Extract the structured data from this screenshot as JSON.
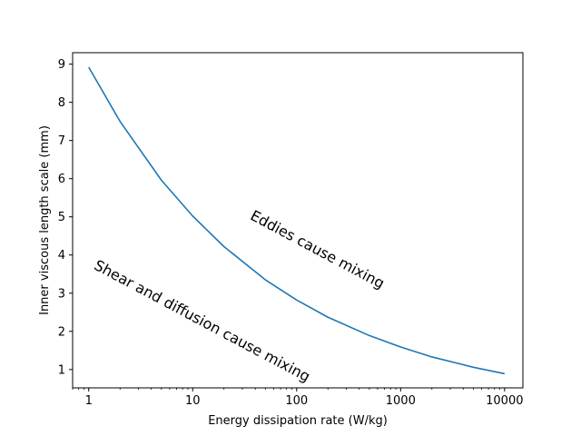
{
  "chart_data": {
    "type": "line",
    "title": "",
    "xlabel": "Energy dissipation rate (W/kg)",
    "ylabel": "Inner viscous length scale (mm)",
    "xscale": "log",
    "xlim": [
      0.7,
      15000
    ],
    "ylim": [
      0.52,
      9.3
    ],
    "grid": false,
    "legend": "none",
    "x_ticks": [
      {
        "value": 1,
        "label": "1"
      },
      {
        "value": 10,
        "label": "10"
      },
      {
        "value": 100,
        "label": "100"
      },
      {
        "value": 1000,
        "label": "1000"
      },
      {
        "value": 10000,
        "label": "10000"
      }
    ],
    "y_ticks": [
      {
        "value": 1,
        "label": "1"
      },
      {
        "value": 2,
        "label": "2"
      },
      {
        "value": 3,
        "label": "3"
      },
      {
        "value": 4,
        "label": "4"
      },
      {
        "value": 5,
        "label": "5"
      },
      {
        "value": 6,
        "label": "6"
      },
      {
        "value": 7,
        "label": "7"
      },
      {
        "value": 8,
        "label": "8"
      },
      {
        "value": 9,
        "label": "9"
      }
    ],
    "series": [
      {
        "color": "#1f77b4",
        "x": [
          1,
          2,
          5,
          10,
          20,
          50,
          100,
          200,
          500,
          1000,
          2000,
          5000,
          10000
        ],
        "y": [
          8.92,
          7.5,
          5.96,
          5.02,
          4.22,
          3.35,
          2.82,
          2.37,
          1.89,
          1.59,
          1.33,
          1.06,
          0.89
        ]
      }
    ],
    "annotations": [
      {
        "text": "Eddies cause mixing",
        "x": 35,
        "y": 4.95,
        "rotation": -28
      },
      {
        "text": "Shear and diffusion cause mixing",
        "x": 1.1,
        "y": 3.65,
        "rotation": -28
      }
    ]
  }
}
